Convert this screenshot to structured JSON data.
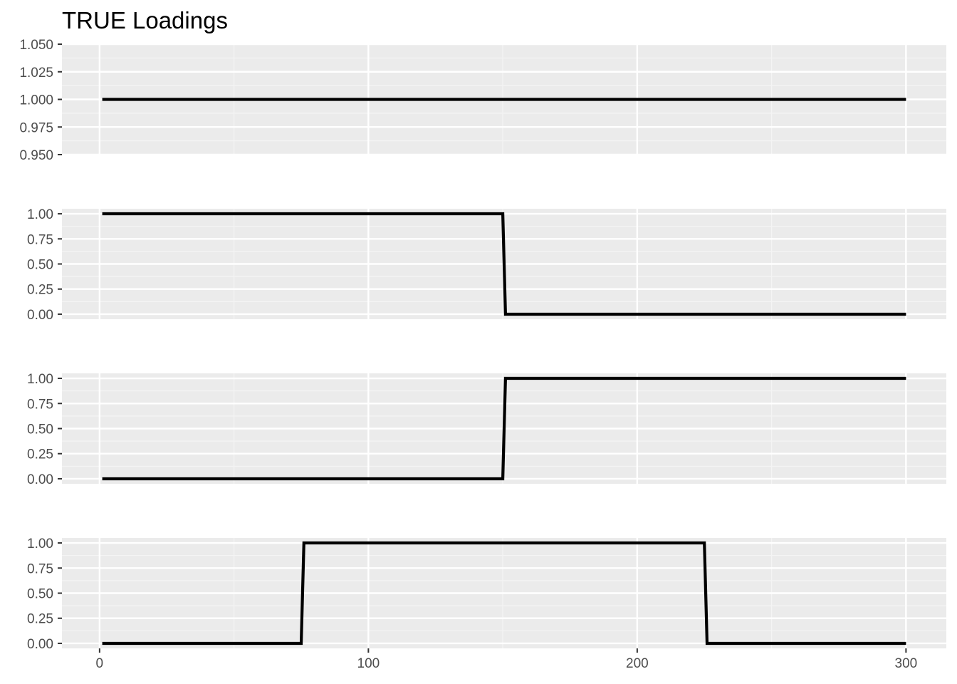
{
  "title": "TRUE Loadings",
  "colors": {
    "panel_background": "#ebebeb",
    "grid_major": "#ffffff",
    "grid_minor": "#f4f4f4",
    "line": "#000000",
    "tick_text": "#4d4d4d",
    "tick_mark": "#333333"
  },
  "chart_data": {
    "type": "line",
    "title": "TRUE Loadings",
    "xlabel": "",
    "ylabel": "",
    "grid": true,
    "legend": "none",
    "xlim": [
      -14,
      315
    ],
    "x_ticks": [
      0,
      100,
      200,
      300
    ],
    "x_tick_labels": [
      "0",
      "100",
      "200",
      "300"
    ],
    "panels": [
      {
        "ylim": [
          0.95,
          1.05
        ],
        "y_ticks": [
          0.95,
          0.975,
          1.0,
          1.025,
          1.05
        ],
        "y_tick_labels": [
          "0.950",
          "0.975",
          "1.000",
          "1.025",
          "1.050"
        ],
        "x": [
          1,
          300
        ],
        "values": [
          1,
          1
        ]
      },
      {
        "ylim": [
          -0.05,
          1.05
        ],
        "y_ticks": [
          0,
          0.25,
          0.5,
          0.75,
          1.0
        ],
        "y_tick_labels": [
          "0.00",
          "0.25",
          "0.50",
          "0.75",
          "1.00"
        ],
        "x": [
          1,
          150,
          151,
          300
        ],
        "values": [
          1,
          1,
          0,
          0
        ]
      },
      {
        "ylim": [
          -0.05,
          1.05
        ],
        "y_ticks": [
          0,
          0.25,
          0.5,
          0.75,
          1.0
        ],
        "y_tick_labels": [
          "0.00",
          "0.25",
          "0.50",
          "0.75",
          "1.00"
        ],
        "x": [
          1,
          150,
          151,
          300
        ],
        "values": [
          0,
          0,
          1,
          1
        ]
      },
      {
        "ylim": [
          -0.05,
          1.05
        ],
        "y_ticks": [
          0,
          0.25,
          0.5,
          0.75,
          1.0
        ],
        "y_tick_labels": [
          "0.00",
          "0.25",
          "0.50",
          "0.75",
          "1.00"
        ],
        "x": [
          1,
          75,
          76,
          225,
          226,
          300
        ],
        "values": [
          0,
          0,
          1,
          1,
          0,
          0
        ]
      }
    ]
  }
}
